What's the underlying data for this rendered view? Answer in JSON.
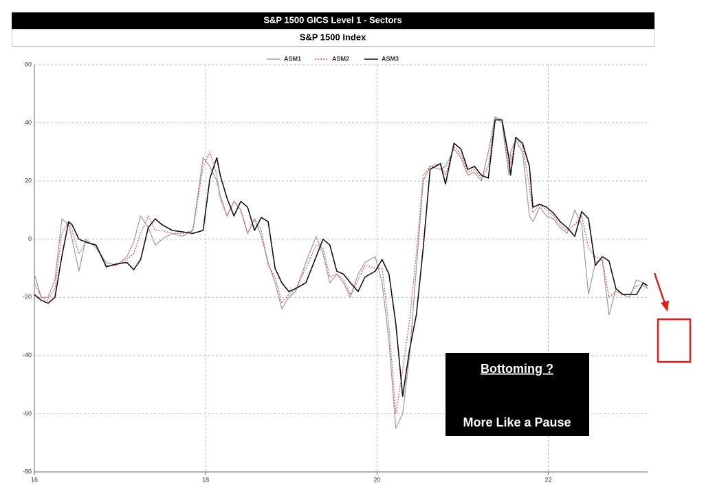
{
  "chart_data": {
    "type": "line",
    "title": "S&P 1500 GICS Level 1 - Sectors",
    "subtitle": "S&P 1500 Index",
    "annotations": [
      "Bottoming ?",
      "More Like a Pause"
    ],
    "x": [
      16.0,
      16.08,
      16.16,
      16.24,
      16.32,
      16.4,
      16.44,
      16.52,
      16.6,
      16.72,
      16.84,
      16.96,
      17.08,
      17.16,
      17.24,
      17.33,
      17.41,
      17.49,
      17.61,
      17.73,
      17.85,
      17.97,
      18.05,
      18.13,
      18.17,
      18.25,
      18.33,
      18.41,
      18.49,
      18.57,
      18.65,
      18.73,
      18.81,
      18.89,
      18.97,
      19.05,
      19.17,
      19.29,
      19.37,
      19.45,
      19.53,
      19.61,
      19.69,
      19.78,
      19.86,
      19.98,
      20.06,
      20.14,
      20.22,
      20.3,
      20.38,
      20.46,
      20.54,
      20.62,
      20.74,
      20.8,
      20.9,
      20.98,
      21.06,
      21.14,
      21.22,
      21.3,
      21.38,
      21.46,
      21.54,
      21.56,
      21.62,
      21.7,
      21.78,
      21.82,
      21.9,
      21.98,
      22.06,
      22.14,
      22.22,
      22.31,
      22.39,
      22.47,
      22.55,
      22.63,
      22.71,
      22.79,
      22.87,
      22.95,
      23.03,
      23.11,
      23.16
    ],
    "series": [
      {
        "name": "ASM1",
        "color": "#a0a0a0",
        "dash": false,
        "values": [
          -12,
          -20,
          -20,
          -14,
          7,
          5,
          0,
          -11,
          0,
          -3,
          -8,
          -9,
          -6,
          -1,
          8,
          4,
          -2,
          0,
          2,
          1,
          3,
          28,
          25,
          20,
          15,
          8,
          13,
          10,
          2,
          7,
          1,
          -8,
          -15,
          -24,
          -20,
          -18,
          -8,
          1,
          -5,
          -15,
          -12,
          -15,
          -20,
          -12,
          -8,
          -6,
          -15,
          -35,
          -65,
          -60,
          -40,
          -10,
          20,
          25,
          24,
          25,
          31,
          28,
          22,
          23,
          20,
          30,
          42,
          40,
          22,
          30,
          34,
          30,
          8,
          6,
          11,
          8,
          7,
          4,
          2,
          10,
          5,
          -19,
          -8,
          -7,
          -26,
          -17,
          -19,
          -20,
          -14,
          -15,
          -17
        ]
      },
      {
        "name": "ASM2",
        "color": "#e8534a",
        "dash": true,
        "values": [
          -15,
          -20,
          -21,
          -17,
          2,
          6,
          3,
          -5,
          -1,
          -2,
          -9,
          -9,
          -7,
          -5,
          2,
          8,
          3,
          3,
          2,
          2,
          3,
          25,
          30,
          22,
          14,
          8,
          13,
          10,
          2,
          7,
          3,
          -9,
          -13,
          -22,
          -19,
          -17,
          -10,
          -2,
          -3,
          -13,
          -12,
          -14,
          -19,
          -14,
          -9,
          -10,
          -10,
          -30,
          -60,
          -45,
          -28,
          -5,
          22,
          25,
          26,
          22,
          32,
          29,
          23,
          24,
          21,
          25,
          42,
          41,
          25,
          26,
          35,
          32,
          18,
          9,
          12,
          10,
          8,
          5,
          3,
          5,
          8,
          -3,
          -6,
          -7,
          -20,
          -18,
          -19,
          -19,
          -16,
          -16,
          -17
        ]
      },
      {
        "name": "ASM3",
        "color": "#111111",
        "dash": false,
        "values": [
          -19,
          -21,
          -22,
          -20,
          -6,
          6,
          5,
          0,
          -1,
          -2,
          -9.5,
          -8.5,
          -8,
          -10.5,
          -7,
          4,
          7,
          5,
          3,
          2.5,
          2,
          3,
          21,
          28,
          22,
          14,
          8,
          13,
          11,
          3,
          7.5,
          6,
          -10,
          -15,
          -18,
          -17,
          -15,
          -6,
          0,
          -2,
          -11,
          -12,
          -15,
          -18,
          -13,
          -11,
          -7,
          -12,
          -29,
          -54,
          -38,
          -26,
          -3,
          24,
          26,
          19,
          33,
          31,
          24,
          25,
          22,
          21,
          41,
          41,
          28,
          22,
          35,
          33,
          25,
          11,
          12,
          11,
          9,
          6,
          4,
          1,
          9.5,
          7,
          -9,
          -6,
          -7.5,
          -17,
          -19,
          -19,
          -19,
          -15,
          -16
        ]
      }
    ],
    "xlim": [
      16,
      23.16
    ],
    "xticks": [
      16,
      18,
      20,
      22
    ],
    "ylim": [
      -80,
      60
    ],
    "yticks": [
      -80,
      -60,
      -40,
      -20,
      0,
      20,
      40,
      60
    ],
    "grid": true
  }
}
